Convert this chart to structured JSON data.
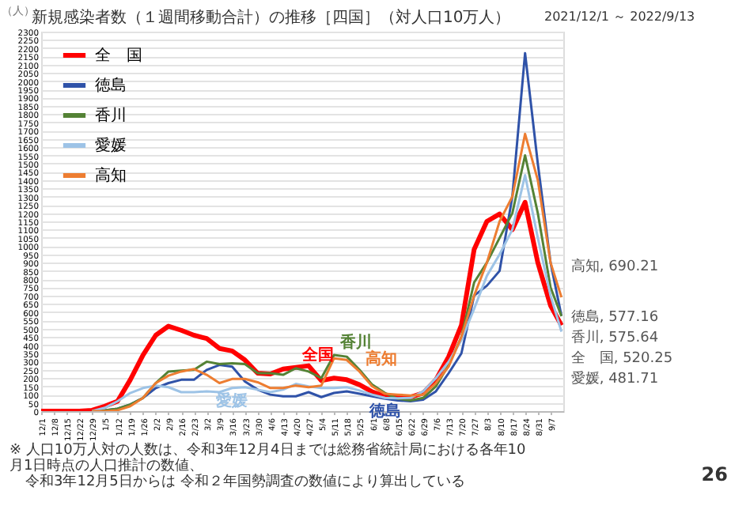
{
  "chart_data": {
    "type": "line",
    "title": "新規感染者数（１週間移動合計）の推移［四国］（対人口10万人）",
    "subtitle": "2021/12/1 ～ 2022/9/13",
    "ylabel": "（人）",
    "x": [
      "2021-12-01",
      "2021-12-08",
      "2021-12-15",
      "2021-12-22",
      "2021-12-29",
      "2022-01-05",
      "2022-01-12",
      "2022-01-19",
      "2022-01-26",
      "2022-02-02",
      "2022-02-09",
      "2022-02-16",
      "2022-02-23",
      "2022-03-02",
      "2022-03-09",
      "2022-03-16",
      "2022-03-23",
      "2022-03-30",
      "2022-04-06",
      "2022-04-13",
      "2022-04-20",
      "2022-04-27",
      "2022-05-04",
      "2022-05-11",
      "2022-05-18",
      "2022-05-25",
      "2022-06-01",
      "2022-06-08",
      "2022-06-15",
      "2022-06-22",
      "2022-06-29",
      "2022-07-06",
      "2022-07-13",
      "2022-07-20",
      "2022-07-27",
      "2022-08-03",
      "2022-08-10",
      "2022-08-17",
      "2022-08-24",
      "2022-08-31",
      "2022-09-07",
      "2022-09-13"
    ],
    "series": [
      {
        "name": "全　国",
        "color": "#ff0000",
        "values": [
          0,
          0,
          0,
          0,
          5,
          30,
          60,
          190,
          340,
          460,
          515,
          490,
          460,
          440,
          380,
          365,
          310,
          230,
          225,
          255,
          265,
          275,
          185,
          200,
          190,
          160,
          117,
          90,
          82,
          85,
          110,
          190,
          330,
          520,
          980,
          1150,
          1195,
          1100,
          1266,
          900,
          640,
          520.25
        ]
      },
      {
        "name": "徳島",
        "color": "#2f52a8",
        "values": [
          null,
          null,
          null,
          null,
          0,
          5,
          15,
          40,
          80,
          140,
          170,
          190,
          190,
          250,
          280,
          270,
          180,
          130,
          100,
          90,
          90,
          115,
          85,
          110,
          120,
          105,
          90,
          75,
          65,
          60,
          70,
          120,
          230,
          350,
          700,
          760,
          850,
          1300,
          2170,
          1500,
          900,
          577.16
        ]
      },
      {
        "name": "香川",
        "color": "#548235",
        "values": [
          null,
          null,
          null,
          null,
          0,
          5,
          15,
          40,
          80,
          170,
          240,
          245,
          250,
          300,
          285,
          290,
          285,
          230,
          230,
          220,
          260,
          240,
          200,
          340,
          330,
          250,
          160,
          110,
          75,
          65,
          80,
          150,
          280,
          450,
          780,
          900,
          1050,
          1200,
          1550,
          1200,
          750,
          575.64
        ]
      },
      {
        "name": "愛媛",
        "color": "#9dc3e6",
        "values": [
          null,
          null,
          null,
          null,
          0,
          20,
          60,
          110,
          140,
          155,
          145,
          115,
          115,
          120,
          115,
          140,
          145,
          130,
          115,
          130,
          165,
          150,
          140,
          140,
          145,
          125,
          100,
          80,
          78,
          80,
          120,
          200,
          300,
          430,
          620,
          820,
          950,
          1100,
          1430,
          1050,
          700,
          481.71
        ]
      },
      {
        "name": "高知",
        "color": "#ed7d31",
        "values": [
          null,
          null,
          null,
          null,
          0,
          0,
          5,
          30,
          80,
          170,
          215,
          240,
          255,
          220,
          170,
          195,
          195,
          175,
          140,
          140,
          155,
          145,
          155,
          320,
          310,
          240,
          150,
          105,
          100,
          95,
          100,
          170,
          270,
          450,
          700,
          900,
          1150,
          1300,
          1680,
          1400,
          900,
          690.21
        ]
      }
    ],
    "xlim": [
      "2021-12-01",
      "2022-09-14"
    ],
    "xticks": [
      {
        "value": "2021-12-01",
        "label": "12/1"
      },
      {
        "value": "2021-12-08",
        "label": "12/8"
      },
      {
        "value": "2021-12-15",
        "label": "12/15"
      },
      {
        "value": "2021-12-22",
        "label": "12/22"
      },
      {
        "value": "2021-12-29",
        "label": "12/29"
      },
      {
        "value": "2022-01-05",
        "label": "1/5"
      },
      {
        "value": "2022-01-12",
        "label": "1/12"
      },
      {
        "value": "2022-01-19",
        "label": "1/19"
      },
      {
        "value": "2022-01-26",
        "label": "1/26"
      },
      {
        "value": "2022-02-02",
        "label": "2/2"
      },
      {
        "value": "2022-02-09",
        "label": "2/9"
      },
      {
        "value": "2022-02-16",
        "label": "2/16"
      },
      {
        "value": "2022-02-23",
        "label": "2/23"
      },
      {
        "value": "2022-03-02",
        "label": "3/2"
      },
      {
        "value": "2022-03-09",
        "label": "3/9"
      },
      {
        "value": "2022-03-16",
        "label": "3/16"
      },
      {
        "value": "2022-03-23",
        "label": "3/23"
      },
      {
        "value": "2022-03-30",
        "label": "3/30"
      },
      {
        "value": "2022-04-06",
        "label": "4/6"
      },
      {
        "value": "2022-04-13",
        "label": "4/13"
      },
      {
        "value": "2022-04-20",
        "label": "4/20"
      },
      {
        "value": "2022-04-27",
        "label": "4/27"
      },
      {
        "value": "2022-05-04",
        "label": "5/4"
      },
      {
        "value": "2022-05-11",
        "label": "5/11"
      },
      {
        "value": "2022-05-18",
        "label": "5/18"
      },
      {
        "value": "2022-05-25",
        "label": "5/25"
      },
      {
        "value": "2022-06-01",
        "label": "6/1"
      },
      {
        "value": "2022-06-08",
        "label": "6/8"
      },
      {
        "value": "2022-06-15",
        "label": "6/15"
      },
      {
        "value": "2022-06-22",
        "label": "6/22"
      },
      {
        "value": "2022-06-29",
        "label": "6/29"
      },
      {
        "value": "2022-07-06",
        "label": "7/6"
      },
      {
        "value": "2022-07-13",
        "label": "7/13"
      },
      {
        "value": "2022-07-20",
        "label": "7/20"
      },
      {
        "value": "2022-07-27",
        "label": "7/27"
      },
      {
        "value": "2022-08-03",
        "label": "8/3"
      },
      {
        "value": "2022-08-10",
        "label": "8/10"
      },
      {
        "value": "2022-08-17",
        "label": "8/17"
      },
      {
        "value": "2022-08-24",
        "label": "8/24"
      },
      {
        "value": "2022-08-31",
        "label": "8/31"
      },
      {
        "value": "2022-09-07",
        "label": "9/7"
      }
    ],
    "ylim": [
      0,
      2300
    ],
    "yticks": [
      0,
      50,
      100,
      150,
      200,
      250,
      300,
      350,
      400,
      450,
      500,
      550,
      600,
      650,
      700,
      750,
      800,
      850,
      900,
      950,
      1000,
      1050,
      1100,
      1150,
      1200,
      1250,
      1300,
      1350,
      1400,
      1450,
      1500,
      1550,
      1600,
      1650,
      1700,
      1750,
      1800,
      1850,
      1900,
      1950,
      2000,
      2050,
      2100,
      2150,
      2200,
      2250,
      2300
    ],
    "grid": "y",
    "legend": "top left",
    "marker": "none",
    "line_style": "solid",
    "annotations": [
      {
        "text": "全国",
        "x": "2022-04-20",
        "y": 265
      },
      {
        "text": "愛媛",
        "x": "2022-03-16",
        "y": 140
      },
      {
        "text": "香川",
        "x": "2022-05-11",
        "y": 340
      },
      {
        "text": "高知",
        "x": "2022-05-25",
        "y": 240
      },
      {
        "text": "徳島",
        "x": "2022-06-08",
        "y": 75
      },
      {
        "text": "高知, 690.21",
        "x": "2022-09-13",
        "y": 690.21
      },
      {
        "text": "徳島, 577.16",
        "x": "2022-09-13",
        "y": 577.16
      },
      {
        "text": "香川, 575.64",
        "x": "2022-09-13",
        "y": 575.64
      },
      {
        "text": "全　国, 520.25",
        "x": "2022-09-13",
        "y": 520.25
      },
      {
        "text": "愛媛, 481.71",
        "x": "2022-09-13",
        "y": 481.71
      },
      "※ 人口10万人対の人数は、令和3年12月4日までは総務省統計局における各年10月1日時点の人口推計の数値、",
      "令和3年12月5日からは 令和２年国勢調査の数値により算出している",
      "26"
    ]
  }
}
